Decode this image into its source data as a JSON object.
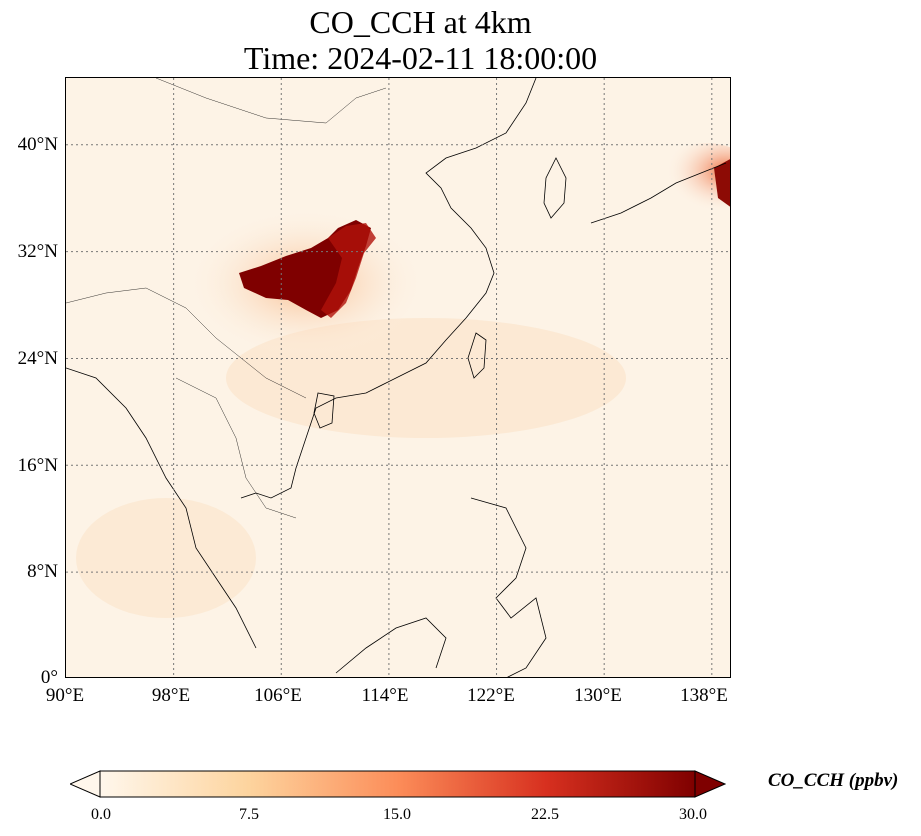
{
  "title": {
    "line1": "CO_CCH at 4km",
    "line2": "Time: 2024-02-11 18:00:00"
  },
  "axes": {
    "lon_ticks": [
      "90°E",
      "98°E",
      "106°E",
      "114°E",
      "122°E",
      "130°E",
      "138°E"
    ],
    "lat_ticks": [
      "40°N",
      "32°N",
      "24°N",
      "16°N",
      "8°N",
      "0°"
    ],
    "lon_range": [
      90,
      139.5
    ],
    "lat_range": [
      0,
      45
    ],
    "grid": true
  },
  "colorbar": {
    "label": "CO_CCH (ppbv)",
    "ticks": [
      "0.0",
      "7.5",
      "15.0",
      "22.5",
      "30.0"
    ],
    "min": 0,
    "max": 30,
    "colormap": [
      "#fff7ec",
      "#fdd49e",
      "#fc8d59",
      "#d7301f",
      "#7f0000"
    ]
  }
}
